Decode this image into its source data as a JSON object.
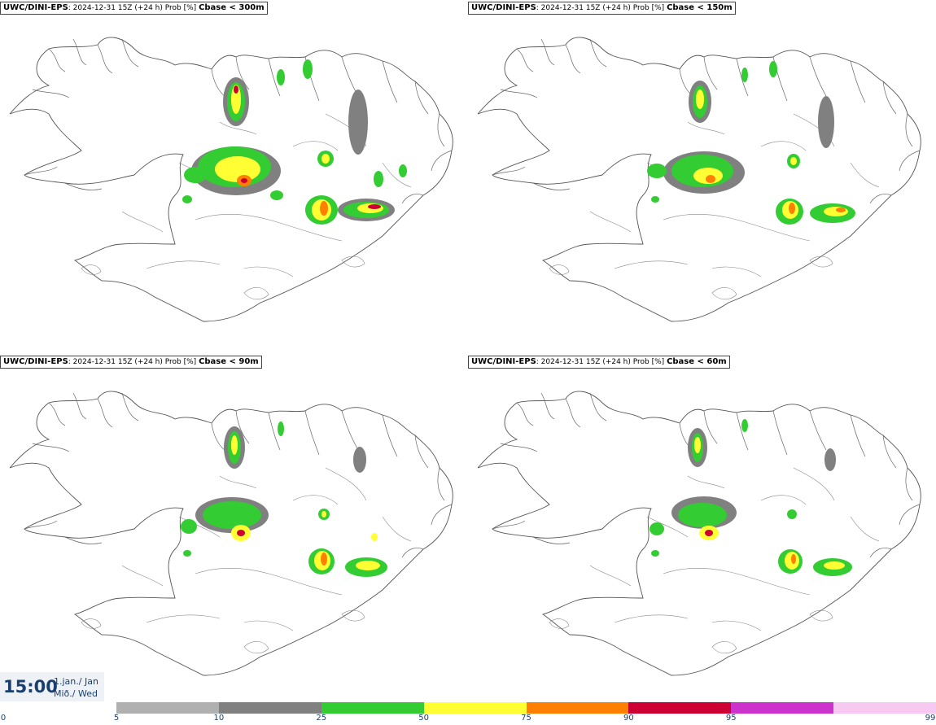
{
  "panels": [
    {
      "model": "UWC/DINI-EPS",
      "meta": "2024-12-31 15Z (+24 h) Prob [%]",
      "param": "Cbase < 300m"
    },
    {
      "model": "UWC/DINI-EPS",
      "meta": "2024-12-31 15Z (+24 h) Prob [%]",
      "param": "Cbase < 150m"
    },
    {
      "model": "UWC/DINI-EPS",
      "meta": "2024-12-31 15Z (+24 h) Prob [%]",
      "param": "Cbase < 90m"
    },
    {
      "model": "UWC/DINI-EPS",
      "meta": "2024-12-31 15Z (+24 h) Prob [%]",
      "param": "Cbase < 60m"
    }
  ],
  "time": {
    "time": "15:00",
    "date_line1": "1.jan./ Jan",
    "date_line2": "Mið./ Wed"
  },
  "legend": {
    "ticks": [
      "0",
      "5",
      "10",
      "25",
      "50",
      "75",
      "90",
      "95",
      "99"
    ],
    "colors": [
      "#b0b0b0",
      "#808080",
      "#33cc33",
      "#ffff33",
      "#ff7f00",
      "#cc0033",
      "#cc33cc",
      "#f7c8f2"
    ]
  }
}
